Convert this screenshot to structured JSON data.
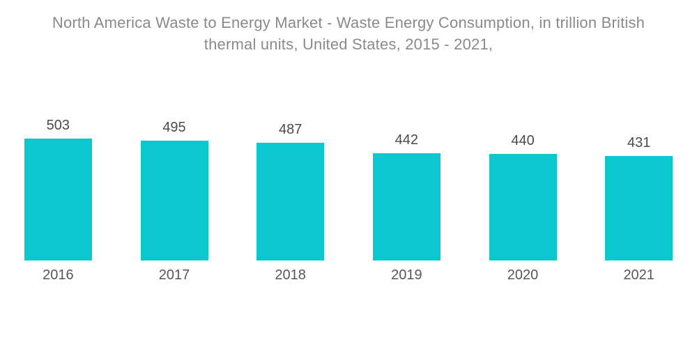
{
  "title": {
    "line1": "North America Waste to Energy Market - Waste Energy Consumption, in trillion British",
    "line2": "thermal units, United States, 2015 - 2021,"
  },
  "chart_data": {
    "type": "bar",
    "title": "North America Waste to Energy Market - Waste Energy Consumption, in trillion British thermal units, United States, 2015 - 2021,",
    "categories": [
      "2016",
      "2017",
      "2018",
      "2019",
      "2020",
      "2021"
    ],
    "values": [
      503,
      495,
      487,
      442,
      440,
      431
    ],
    "xlabel": "",
    "ylabel": "",
    "ylim": [
      0,
      503
    ],
    "grid": false,
    "legend_position": "none",
    "data_labels_position": "above-bars",
    "bar_color": "#0bc8ce",
    "value_label_color": "#4a4a4a",
    "category_label_color": "#575757",
    "title_color": "#8a8a8a",
    "background_color": "#ffffff"
  }
}
